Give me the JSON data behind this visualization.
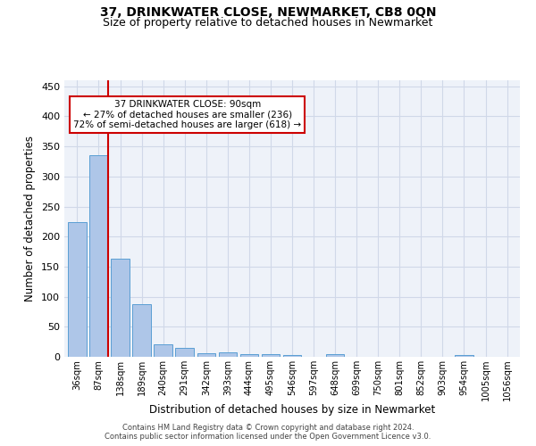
{
  "title": "37, DRINKWATER CLOSE, NEWMARKET, CB8 0QN",
  "subtitle": "Size of property relative to detached houses in Newmarket",
  "xlabel": "Distribution of detached houses by size in Newmarket",
  "ylabel": "Number of detached properties",
  "bar_labels": [
    "36sqm",
    "87sqm",
    "138sqm",
    "189sqm",
    "240sqm",
    "291sqm",
    "342sqm",
    "393sqm",
    "444sqm",
    "495sqm",
    "546sqm",
    "597sqm",
    "648sqm",
    "699sqm",
    "750sqm",
    "801sqm",
    "852sqm",
    "903sqm",
    "954sqm",
    "1005sqm",
    "1056sqm"
  ],
  "bar_values": [
    224,
    335,
    163,
    88,
    21,
    15,
    6,
    7,
    4,
    5,
    3,
    0,
    4,
    0,
    0,
    0,
    0,
    0,
    3,
    0,
    0
  ],
  "bar_color": "#aec6e8",
  "bar_edge_color": "#5a9fd4",
  "property_line_x": 1,
  "annotation_line1": "37 DRINKWATER CLOSE: 90sqm",
  "annotation_line2": "← 27% of detached houses are smaller (236)",
  "annotation_line3": "72% of semi-detached houses are larger (618) →",
  "annotation_box_color": "#ffffff",
  "annotation_box_edge": "#cc0000",
  "vline_color": "#cc0000",
  "ylim": [
    0,
    460
  ],
  "yticks": [
    0,
    50,
    100,
    150,
    200,
    250,
    300,
    350,
    400,
    450
  ],
  "grid_color": "#d0d8e8",
  "bg_color": "#eef2f9",
  "footer1": "Contains HM Land Registry data © Crown copyright and database right 2024.",
  "footer2": "Contains public sector information licensed under the Open Government Licence v3.0.",
  "title_fontsize": 10,
  "subtitle_fontsize": 9
}
